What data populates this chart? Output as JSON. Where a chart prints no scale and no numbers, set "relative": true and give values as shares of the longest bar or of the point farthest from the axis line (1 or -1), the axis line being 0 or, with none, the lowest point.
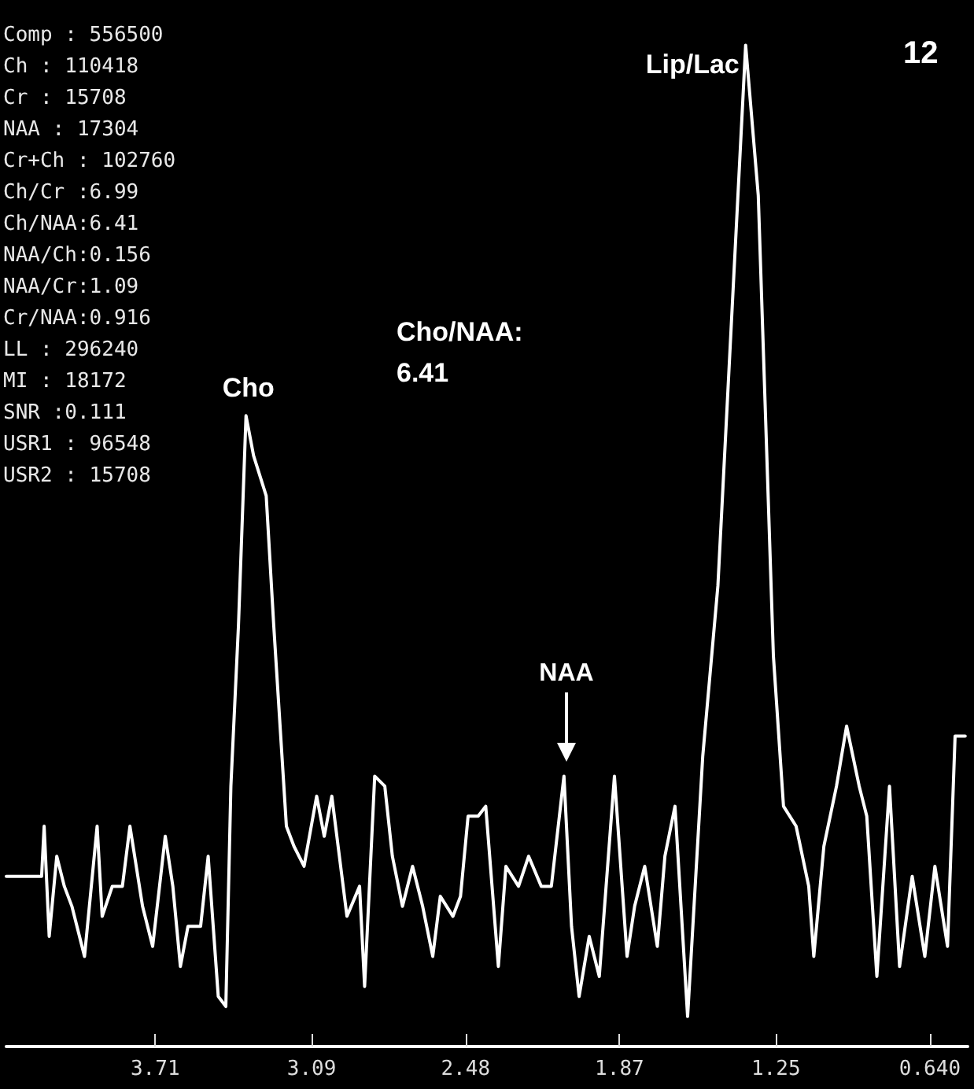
{
  "chart_data": {
    "type": "line",
    "relative": true,
    "color": "#ffffff",
    "marker": "none",
    "line_style": "solid",
    "xlim": [
      4.3,
      0.49
    ],
    "xticks": [
      3.71,
      3.09,
      2.48,
      1.87,
      1.25,
      {
        "value": 0.64,
        "label": "0.640"
      }
    ],
    "x": [
      4.3,
      4.16,
      4.15,
      4.13,
      4.1,
      4.07,
      4.04,
      3.99,
      3.94,
      3.92,
      3.88,
      3.84,
      3.81,
      3.76,
      3.72,
      3.67,
      3.64,
      3.61,
      3.58,
      3.53,
      3.5,
      3.46,
      3.43,
      3.41,
      3.38,
      3.35,
      3.32,
      3.27,
      3.24,
      3.19,
      3.16,
      3.12,
      3.07,
      3.04,
      3.01,
      2.98,
      2.95,
      2.9,
      2.88,
      2.84,
      2.8,
      2.77,
      2.73,
      2.69,
      2.65,
      2.61,
      2.58,
      2.53,
      2.5,
      2.47,
      2.43,
      2.4,
      2.35,
      2.32,
      2.27,
      2.23,
      2.18,
      2.14,
      2.09,
      2.06,
      2.03,
      1.99,
      1.95,
      1.89,
      1.84,
      1.81,
      1.77,
      1.72,
      1.69,
      1.65,
      1.6,
      1.54,
      1.48,
      1.37,
      1.32,
      1.26,
      1.22,
      1.17,
      1.12,
      1.1,
      1.06,
      1.01,
      0.97,
      0.92,
      0.89,
      0.85,
      0.8,
      0.76,
      0.71,
      0.66,
      0.62,
      0.57,
      0.54,
      0.5
    ],
    "values": [
      0.17,
      0.17,
      0.22,
      0.11,
      0.19,
      0.16,
      0.14,
      0.09,
      0.22,
      0.13,
      0.16,
      0.16,
      0.22,
      0.14,
      0.1,
      0.21,
      0.16,
      0.08,
      0.12,
      0.12,
      0.19,
      0.05,
      0.04,
      0.26,
      0.42,
      0.63,
      0.59,
      0.55,
      0.42,
      0.22,
      0.2,
      0.18,
      0.25,
      0.21,
      0.25,
      0.19,
      0.13,
      0.16,
      0.06,
      0.27,
      0.26,
      0.19,
      0.14,
      0.18,
      0.14,
      0.09,
      0.15,
      0.13,
      0.15,
      0.23,
      0.23,
      0.24,
      0.08,
      0.18,
      0.16,
      0.19,
      0.16,
      0.16,
      0.27,
      0.12,
      0.05,
      0.11,
      0.07,
      0.27,
      0.09,
      0.14,
      0.18,
      0.1,
      0.19,
      0.24,
      0.03,
      0.29,
      0.46,
      1.0,
      0.85,
      0.39,
      0.24,
      0.22,
      0.16,
      0.09,
      0.2,
      0.26,
      0.32,
      0.26,
      0.23,
      0.07,
      0.26,
      0.08,
      0.17,
      0.09,
      0.18,
      0.1,
      0.31,
      0.31
    ],
    "annotations": [
      "Comp : 556500",
      "Ch : 110418",
      "Cr : 15708",
      "NAA : 17304",
      "Cr+Ch : 102760",
      "Ch/Cr :6.99",
      "Ch/NAA:6.41",
      "NAA/Ch:0.156",
      "NAA/Cr:1.09",
      "Cr/NAA:0.916",
      "LL : 296240",
      "MI : 18172",
      "SNR :0.111",
      "USR1 : 96548",
      "USR2 : 15708",
      "Cho/NAA:\n6.41",
      "12",
      "NAA",
      {
        "text": "Cho",
        "x": 3.35,
        "y": 0.63
      },
      {
        "text": "Lip/Lac",
        "x": 1.37,
        "y": 1.0
      }
    ]
  }
}
